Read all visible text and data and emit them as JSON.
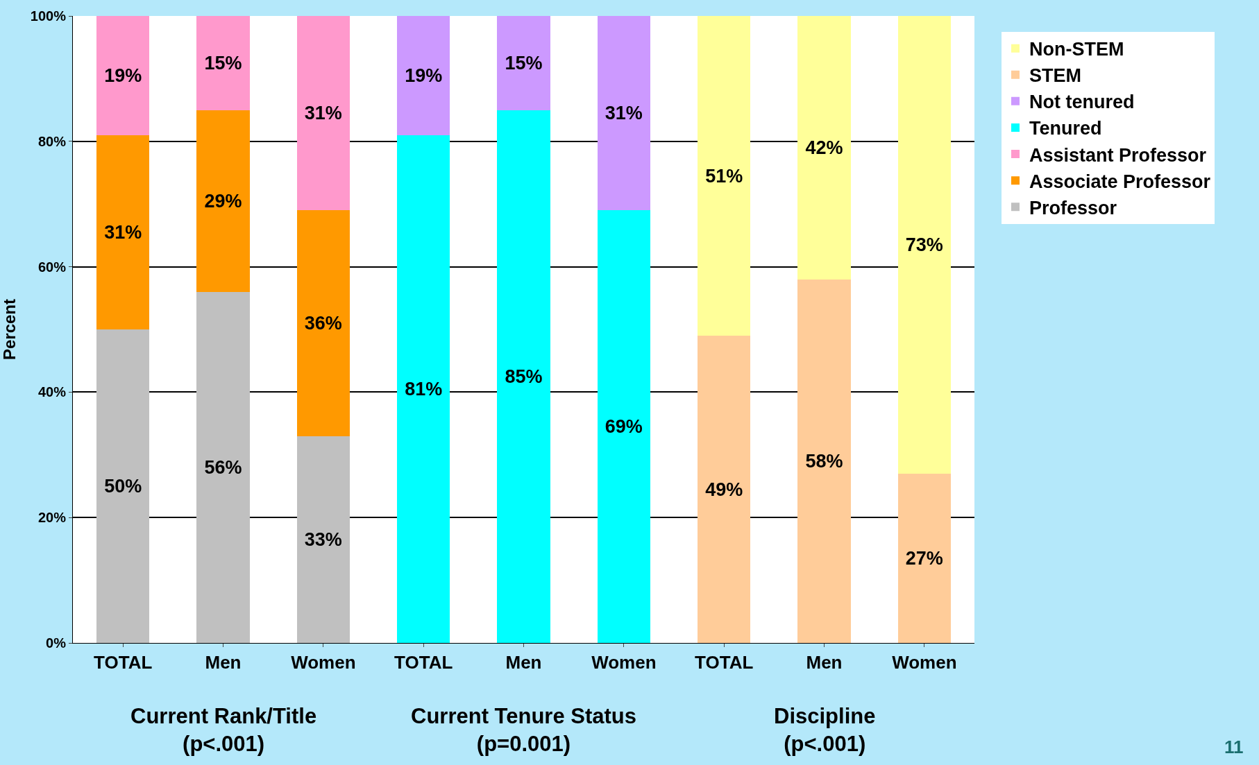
{
  "chart_data": {
    "type": "bar",
    "stacked": true,
    "ylabel": "Percent",
    "categories": [
      "TOTAL",
      "Men",
      "Women",
      "TOTAL",
      "Men",
      "Women",
      "TOTAL",
      "Men",
      "Women"
    ],
    "series": [
      {
        "name": "Professor",
        "color": "#c0c0c0",
        "values": [
          50,
          56,
          33,
          null,
          null,
          null,
          null,
          null,
          null
        ],
        "value_labels": [
          "50%",
          "56%",
          "33%",
          null,
          null,
          null,
          null,
          null,
          null
        ]
      },
      {
        "name": "Associate Professor",
        "color": "#ff9900",
        "values": [
          31,
          29,
          36,
          null,
          null,
          null,
          null,
          null,
          null
        ],
        "value_labels": [
          "31%",
          "29%",
          "36%",
          null,
          null,
          null,
          null,
          null,
          null
        ]
      },
      {
        "name": "Assistant Professor",
        "color": "#ff99cc",
        "values": [
          19,
          15,
          31,
          null,
          null,
          null,
          null,
          null,
          null
        ],
        "value_labels": [
          "19%",
          "15%",
          "31%",
          null,
          null,
          null,
          null,
          null,
          null
        ]
      },
      {
        "name": "Tenured",
        "color": "#00ffff",
        "values": [
          null,
          null,
          null,
          81,
          85,
          69,
          null,
          null,
          null
        ],
        "value_labels": [
          null,
          null,
          null,
          "81%",
          "85%",
          "69%",
          null,
          null,
          null
        ]
      },
      {
        "name": "Not tenured",
        "color": "#cc99ff",
        "values": [
          null,
          null,
          null,
          19,
          15,
          31,
          null,
          null,
          null
        ],
        "value_labels": [
          null,
          null,
          null,
          "19%",
          "15%",
          "31%",
          null,
          null,
          null
        ]
      },
      {
        "name": "STEM",
        "color": "#ffcc99",
        "values": [
          null,
          null,
          null,
          null,
          null,
          null,
          49,
          58,
          27
        ],
        "value_labels": [
          null,
          null,
          null,
          null,
          null,
          null,
          "49%",
          "58%",
          "27%"
        ]
      },
      {
        "name": "Non-STEM",
        "color": "#ffff99",
        "values": [
          null,
          null,
          null,
          null,
          null,
          null,
          51,
          42,
          73
        ],
        "value_labels": [
          null,
          null,
          null,
          null,
          null,
          null,
          "51%",
          "42%",
          "73%"
        ]
      }
    ],
    "ylim": [
      0,
      100
    ],
    "yticks": [
      {
        "value": 0,
        "label": "0%"
      },
      {
        "value": 20,
        "label": "20%"
      },
      {
        "value": 40,
        "label": "40%"
      },
      {
        "value": 60,
        "label": "60%"
      },
      {
        "value": 80,
        "label": "80%"
      },
      {
        "value": 100,
        "label": "100%"
      }
    ],
    "grid": "y",
    "legend": "right",
    "annotations": [
      "Current Rank/Title\n(p<.001)",
      "Current Tenure Status\n(p=0.001)",
      "Discipline\n(p<.001)",
      "11"
    ]
  }
}
